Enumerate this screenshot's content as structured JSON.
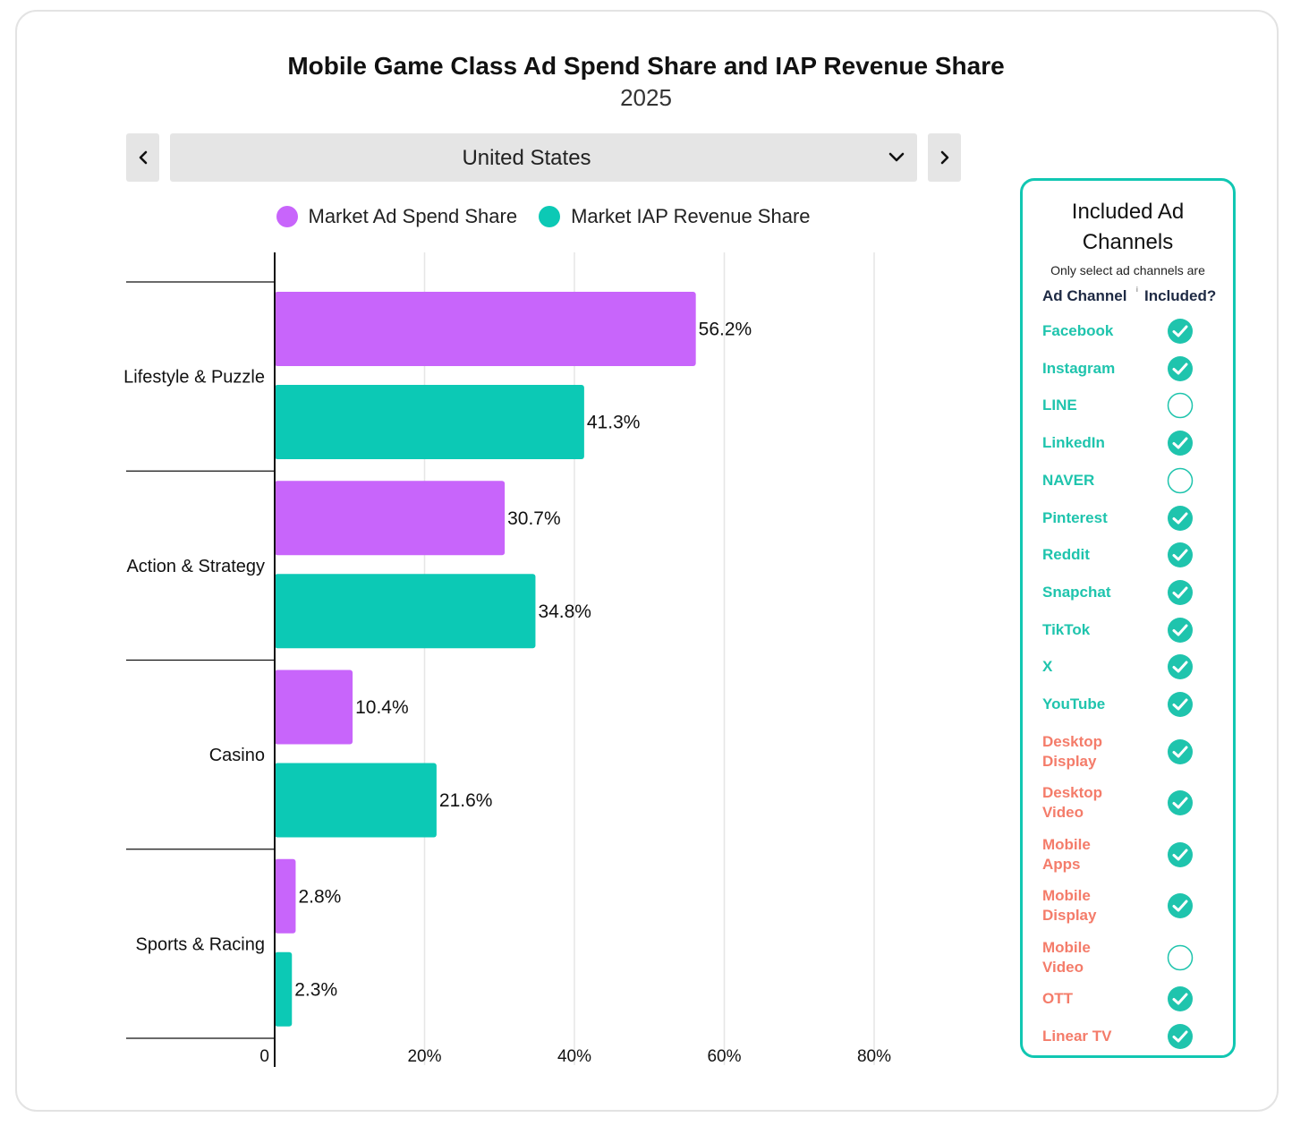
{
  "header": {
    "title": "Mobile Game Class Ad Spend Share and IAP Revenue Share",
    "subtitle": "2025"
  },
  "controls": {
    "selected_market": "United States"
  },
  "colors": {
    "ad_spend": "#c865fb",
    "iap_revenue": "#0cc9b5",
    "mobile_channel": "#1fc4ad",
    "other_channel": "#f47c6a",
    "panel_border": "#11c7b2"
  },
  "chart_data": {
    "type": "bar",
    "orientation": "horizontal",
    "categories": [
      "Lifestyle & Puzzle",
      "Action & Strategy",
      "Casino",
      "Sports & Racing"
    ],
    "series": [
      {
        "name": "Market Ad Spend Share",
        "values": [
          56.2,
          30.7,
          10.4,
          2.8
        ]
      },
      {
        "name": "Market IAP Revenue Share",
        "values": [
          41.3,
          34.8,
          21.6,
          2.3
        ]
      }
    ],
    "data_labels": [
      [
        "56.2%",
        "30.7%",
        "10.4%",
        "2.8%"
      ],
      [
        "41.3%",
        "34.8%",
        "21.6%",
        "2.3%"
      ]
    ],
    "xlim": [
      0,
      80
    ],
    "xticks": [
      0,
      20,
      40,
      60,
      80
    ],
    "xtick_labels": [
      "0",
      "20%",
      "40%",
      "60%",
      "80%"
    ],
    "grid": true,
    "legend": "top-center"
  },
  "channels_panel": {
    "title": "Included Ad Channels",
    "note": "Only select ad channels are",
    "col_channel": "Ad Channel",
    "col_included": "Included?",
    "col_marker": "i",
    "channels": [
      {
        "name": "Facebook",
        "included": true,
        "group": "mobile"
      },
      {
        "name": "Instagram",
        "included": true,
        "group": "mobile"
      },
      {
        "name": "LINE",
        "included": false,
        "group": "mobile"
      },
      {
        "name": "LinkedIn",
        "included": true,
        "group": "mobile"
      },
      {
        "name": "NAVER",
        "included": false,
        "group": "mobile"
      },
      {
        "name": "Pinterest",
        "included": true,
        "group": "mobile"
      },
      {
        "name": "Reddit",
        "included": true,
        "group": "mobile"
      },
      {
        "name": "Snapchat",
        "included": true,
        "group": "mobile"
      },
      {
        "name": "TikTok",
        "included": true,
        "group": "mobile"
      },
      {
        "name": "X",
        "included": true,
        "group": "mobile"
      },
      {
        "name": "YouTube",
        "included": true,
        "group": "mobile"
      },
      {
        "name": "Desktop Display",
        "included": true,
        "group": "other"
      },
      {
        "name": "Desktop Video",
        "included": true,
        "group": "other"
      },
      {
        "name": "Mobile Apps",
        "included": true,
        "group": "other"
      },
      {
        "name": "Mobile Display",
        "included": true,
        "group": "other"
      },
      {
        "name": "Mobile Video",
        "included": false,
        "group": "other"
      },
      {
        "name": "OTT",
        "included": true,
        "group": "other"
      },
      {
        "name": "Linear TV",
        "included": true,
        "group": "other"
      }
    ]
  }
}
